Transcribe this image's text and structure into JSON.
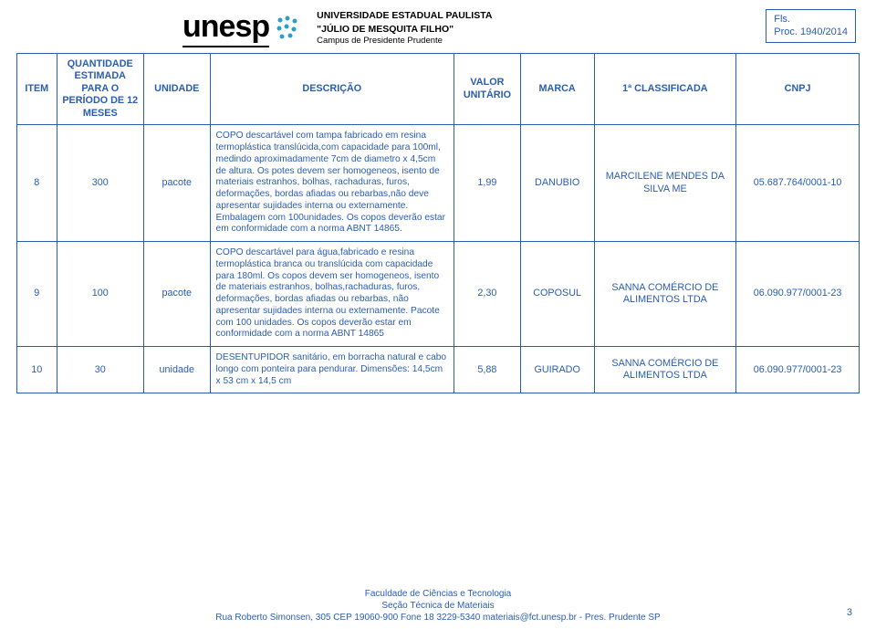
{
  "header": {
    "logo_text": "unesp",
    "uni_line1": "UNIVERSIDADE ESTADUAL PAULISTA",
    "uni_line2": "\"JÚLIO DE MESQUITA FILHO\"",
    "uni_line3": "Campus de Presidente Prudente",
    "proc_fls": "Fls.",
    "proc_num": "Proc. 1940/2014"
  },
  "columns": {
    "item": "ITEM",
    "qtd": "QUANTIDADE ESTIMADA PARA O PERÍODO DE 12 MESES",
    "uni": "UNIDADE",
    "desc": "DESCRIÇÃO",
    "val": "VALOR UNITÁRIO",
    "marca": "MARCA",
    "cla": "1ª CLASSIFICADA",
    "cnpj": "CNPJ"
  },
  "rows": [
    {
      "item": "8",
      "qtd": "300",
      "uni": "pacote",
      "desc": "COPO descartável com tampa fabricado em resina termoplástica translúcida,com capacidade para 100ml, medindo aproximadamente 7cm de diametro x 4,5cm de altura. Os potes devem ser homogeneos, isento de materiais estranhos, bolhas, rachaduras, furos, deformações, bordas afiadas ou rebarbas,não deve apresentar sujidades interna ou externamente. Embalagem com 100unidades. Os copos deverão estar em conformidade com a norma ABNT 14865.",
      "val": "1,99",
      "marca": "DANUBIO",
      "cla": "MARCILENE MENDES DA SILVA ME",
      "cnpj": "05.687.764/0001-10"
    },
    {
      "item": "9",
      "qtd": "100",
      "uni": "pacote",
      "desc": "COPO descartável para água,fabricado e resina termoplástica branca ou translúcida com capacidade para 180ml. Os copos devem ser homogeneos, isento de materiais estranhos, bolhas,rachaduras, furos, deformações, bordas afiadas ou rebarbas, não apresentar sujidades interna ou externamente. Pacote com 100 unidades. Os copos deverão estar em conformidade com a norma ABNT 14865",
      "val": "2,30",
      "marca": "COPOSUL",
      "cla": "SANNA COMÉRCIO DE ALIMENTOS LTDA",
      "cnpj": "06.090.977/0001-23"
    },
    {
      "item": "10",
      "qtd": "30",
      "uni": "unidade",
      "desc": "DESENTUPIDOR sanitário, em borracha natural e cabo longo com ponteira para pendurar. Dimensões: 14,5cm x 53 cm x 14,5 cm",
      "val": "5,88",
      "marca": "GUIRADO",
      "cla": "SANNA COMÉRCIO DE ALIMENTOS LTDA",
      "cnpj": "06.090.977/0001-23"
    }
  ],
  "footer": {
    "l1": "Faculdade de Ciências e Tecnologia",
    "l2": "Seção Técnica de Materiais",
    "l3": "Rua Roberto Simonsen, 305  CEP 19060-900  Fone 18 3229-5340 materiais@fct.unesp.br  - Pres. Prudente SP",
    "page": "3"
  }
}
